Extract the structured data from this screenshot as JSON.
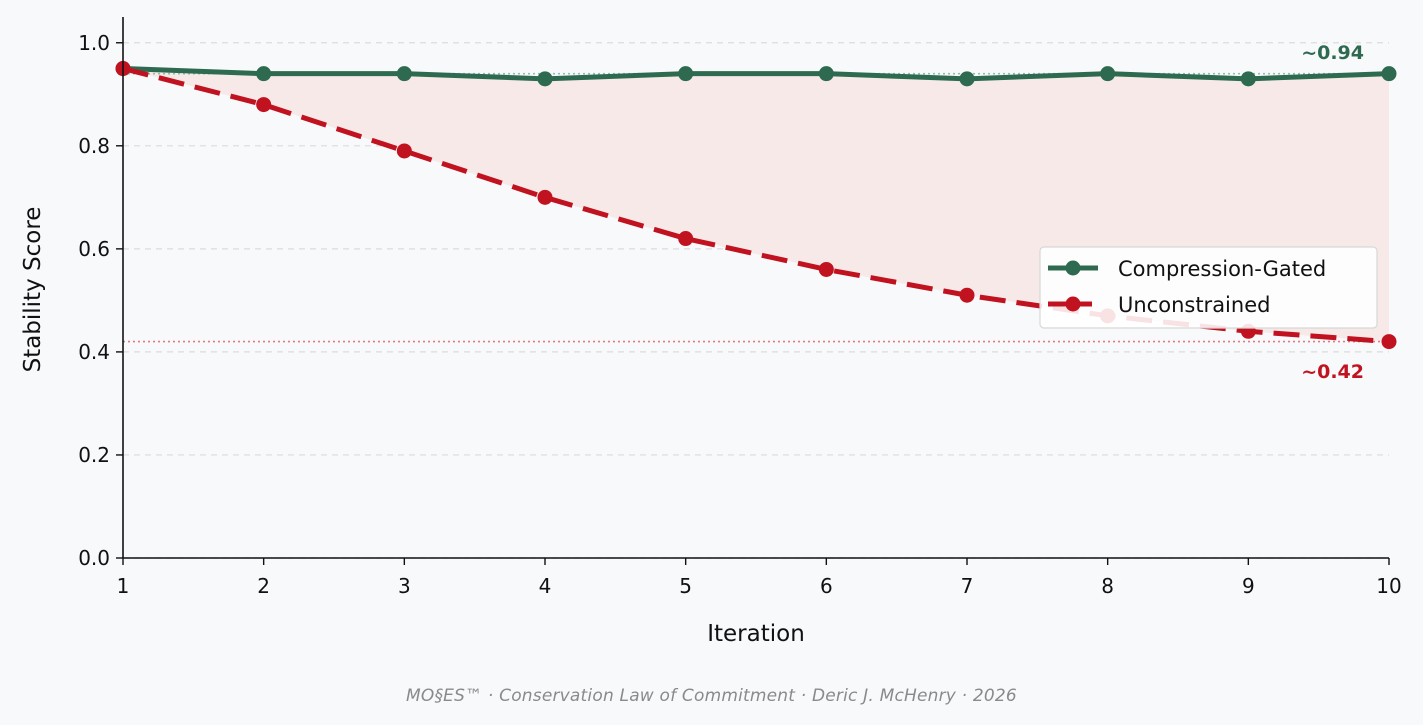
{
  "chart_data": {
    "type": "line",
    "x": [
      1,
      2,
      3,
      4,
      5,
      6,
      7,
      8,
      9,
      10
    ],
    "xlabel": "Iteration",
    "ylabel": "Stability Score",
    "xlim": [
      1,
      10
    ],
    "ylim": [
      0.0,
      1.05
    ],
    "xticks": [
      "1",
      "2",
      "3",
      "4",
      "5",
      "6",
      "7",
      "8",
      "9",
      "10"
    ],
    "yticks": [
      "0.0",
      "0.2",
      "0.4",
      "0.6",
      "0.8",
      "1.0"
    ],
    "grid": "horizontal dashed",
    "legend_placement": "center-right",
    "series": [
      {
        "name": "Compression-Gated",
        "values": [
          0.95,
          0.94,
          0.94,
          0.93,
          0.94,
          0.94,
          0.93,
          0.94,
          0.93,
          0.94
        ],
        "color": "#2d6a4f",
        "style": "solid",
        "end_label": "~0.94"
      },
      {
        "name": "Unconstrained",
        "values": [
          0.95,
          0.88,
          0.79,
          0.7,
          0.62,
          0.56,
          0.51,
          0.47,
          0.44,
          0.42
        ],
        "color": "#c1121f",
        "style": "dashed",
        "end_label": "~0.42"
      }
    ],
    "fill_between": {
      "color": "#f6e9e8"
    },
    "reference_lines": [
      {
        "y": 0.42,
        "color": "#e07a85",
        "style": "dotted"
      },
      {
        "y": 0.94,
        "color": "#8fbfa8",
        "style": "dotted"
      }
    ]
  },
  "footer": "MO§ES™  ·  Conservation Law of Commitment  ·  Deric J. McHenry  ·  2026"
}
